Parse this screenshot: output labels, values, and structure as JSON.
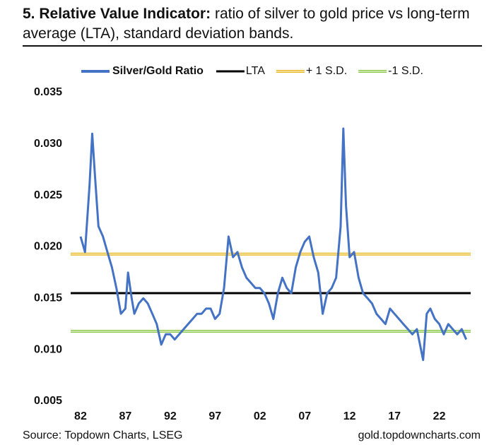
{
  "chart_data": {
    "type": "line",
    "title_bold": "5. Relative Value Indicator:",
    "title": "ratio of silver to gold price vs long-term average (LTA), standard deviation bands.",
    "source": "Source: Topdown Charts, LSEG",
    "watermark": "gold.topdowncharts.com",
    "x": [
      1982.0,
      1982.5,
      1983.0,
      1983.3,
      1983.6,
      1984.0,
      1984.5,
      1985.0,
      1985.5,
      1986.0,
      1986.5,
      1987.0,
      1987.3,
      1987.7,
      1988.0,
      1988.5,
      1989.0,
      1989.5,
      1990.0,
      1990.5,
      1991.0,
      1991.5,
      1992.0,
      1992.5,
      1993.0,
      1993.5,
      1994.0,
      1994.5,
      1995.0,
      1995.5,
      1996.0,
      1996.5,
      1997.0,
      1997.5,
      1998.0,
      1998.5,
      1999.0,
      1999.5,
      2000.0,
      2000.5,
      2001.0,
      2001.5,
      2002.0,
      2002.5,
      2003.0,
      2003.5,
      2004.0,
      2004.5,
      2005.0,
      2005.5,
      2006.0,
      2006.5,
      2007.0,
      2007.5,
      2008.0,
      2008.5,
      2009.0,
      2009.5,
      2010.0,
      2010.5,
      2011.0,
      2011.3,
      2011.6,
      2012.0,
      2012.5,
      2013.0,
      2013.5,
      2014.0,
      2014.5,
      2015.0,
      2015.5,
      2016.0,
      2016.5,
      2017.0,
      2017.5,
      2018.0,
      2018.5,
      2019.0,
      2019.5,
      2020.2,
      2020.6,
      2021.0,
      2021.5,
      2022.0,
      2022.5,
      2023.0,
      2023.5,
      2024.0,
      2024.5,
      2025.0
    ],
    "series": [
      {
        "name": "Silver/Gold Ratio",
        "color": "#4472c4",
        "values": [
          0.021,
          0.0195,
          0.026,
          0.031,
          0.027,
          0.022,
          0.021,
          0.0195,
          0.018,
          0.016,
          0.0135,
          0.014,
          0.0175,
          0.015,
          0.0135,
          0.0145,
          0.015,
          0.0145,
          0.0135,
          0.0125,
          0.0105,
          0.0115,
          0.0115,
          0.011,
          0.0115,
          0.012,
          0.0125,
          0.013,
          0.0135,
          0.0135,
          0.014,
          0.014,
          0.013,
          0.0135,
          0.016,
          0.021,
          0.019,
          0.0195,
          0.018,
          0.017,
          0.0165,
          0.016,
          0.016,
          0.0155,
          0.0145,
          0.013,
          0.0155,
          0.017,
          0.016,
          0.0155,
          0.018,
          0.0195,
          0.0205,
          0.021,
          0.019,
          0.0175,
          0.0135,
          0.0155,
          0.016,
          0.017,
          0.022,
          0.0315,
          0.024,
          0.019,
          0.0195,
          0.017,
          0.0155,
          0.015,
          0.0145,
          0.0135,
          0.013,
          0.0125,
          0.014,
          0.0135,
          0.013,
          0.0125,
          0.012,
          0.0115,
          0.012,
          0.009,
          0.0135,
          0.014,
          0.013,
          0.0125,
          0.0115,
          0.0125,
          0.012,
          0.0115,
          0.012,
          0.011
        ]
      }
    ],
    "reference_lines": [
      {
        "name": "LTA",
        "color": "#000000",
        "value": 0.0155
      },
      {
        "name": "+ 1 S.D.",
        "color": "#e8b820",
        "value": 0.0193
      },
      {
        "name": "-1 S.D.",
        "color": "#8cc84b",
        "value": 0.0118
      }
    ],
    "xlim": [
      1980.9,
      2025.5
    ],
    "xticks": [
      {
        "value": 1982,
        "label": "82"
      },
      {
        "value": 1987,
        "label": "87"
      },
      {
        "value": 1992,
        "label": "92"
      },
      {
        "value": 1997,
        "label": "97"
      },
      {
        "value": 2002,
        "label": "02"
      },
      {
        "value": 2007,
        "label": "07"
      },
      {
        "value": 2012,
        "label": "12"
      },
      {
        "value": 2017,
        "label": "17"
      },
      {
        "value": 2022,
        "label": "22"
      }
    ],
    "ylim": [
      0.005,
      0.035
    ],
    "yticks": [
      {
        "value": 0.005,
        "label": "0.005"
      },
      {
        "value": 0.01,
        "label": "0.010"
      },
      {
        "value": 0.015,
        "label": "0.015"
      },
      {
        "value": 0.02,
        "label": "0.020"
      },
      {
        "value": 0.025,
        "label": "0.025"
      },
      {
        "value": 0.03,
        "label": "0.030"
      },
      {
        "value": 0.035,
        "label": "0.035"
      }
    ]
  }
}
